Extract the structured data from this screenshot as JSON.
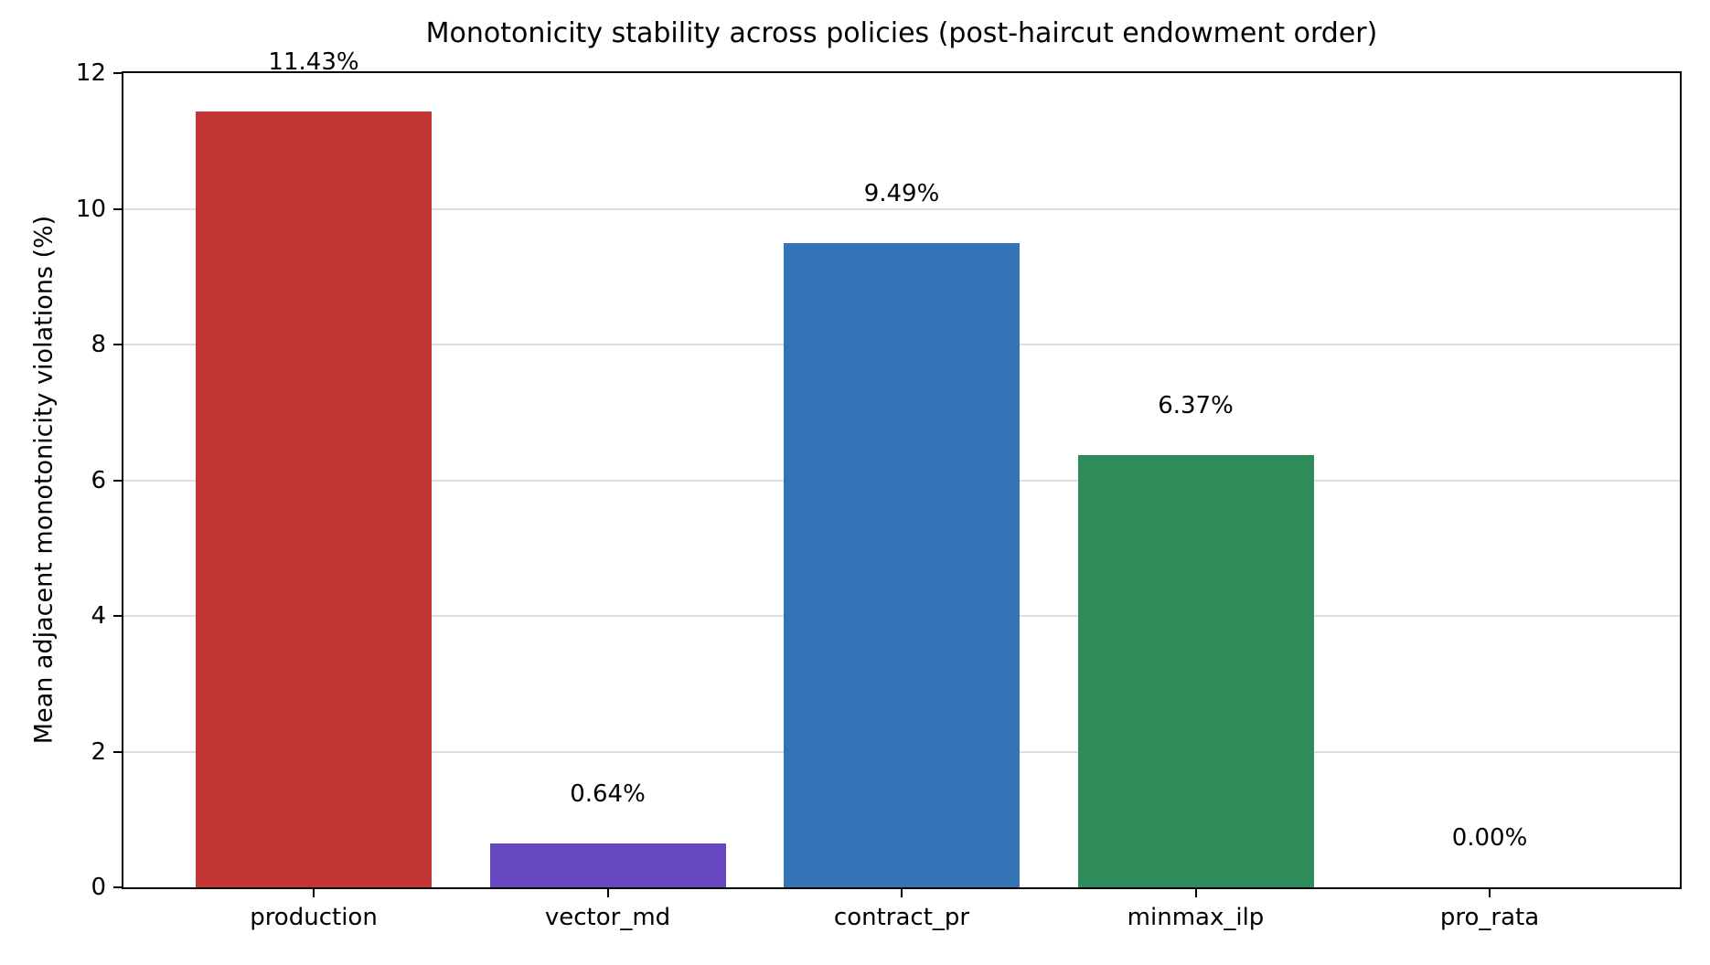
{
  "chart_data": {
    "type": "bar",
    "title": "Monotonicity stability across policies (post-haircut endowment order)",
    "xlabel": "",
    "ylabel": "Mean adjacent monotonicity violations (%)",
    "categories": [
      "production",
      "vector_md",
      "contract_pr",
      "minmax_ilp",
      "pro_rata"
    ],
    "values": [
      11.43,
      0.64,
      9.49,
      6.37,
      0.0
    ],
    "value_labels": [
      "11.43%",
      "0.64%",
      "9.49%",
      "6.37%",
      "0.00%"
    ],
    "bar_colors": [
      "#c43636",
      "#6748c0",
      "#3274b5",
      "#2e8b5a",
      "#999999"
    ],
    "ylim": [
      0,
      12
    ],
    "yticks": [
      0,
      2,
      4,
      6,
      8,
      10,
      12
    ],
    "ytick_labels": [
      "0",
      "2",
      "4",
      "6",
      "8",
      "10",
      "12"
    ],
    "grid": "horizontal",
    "legend_position": "none"
  },
  "colors": {
    "background": "#ffffff",
    "gridline": "#dedede",
    "spine": "#000000",
    "text": "#000000"
  }
}
